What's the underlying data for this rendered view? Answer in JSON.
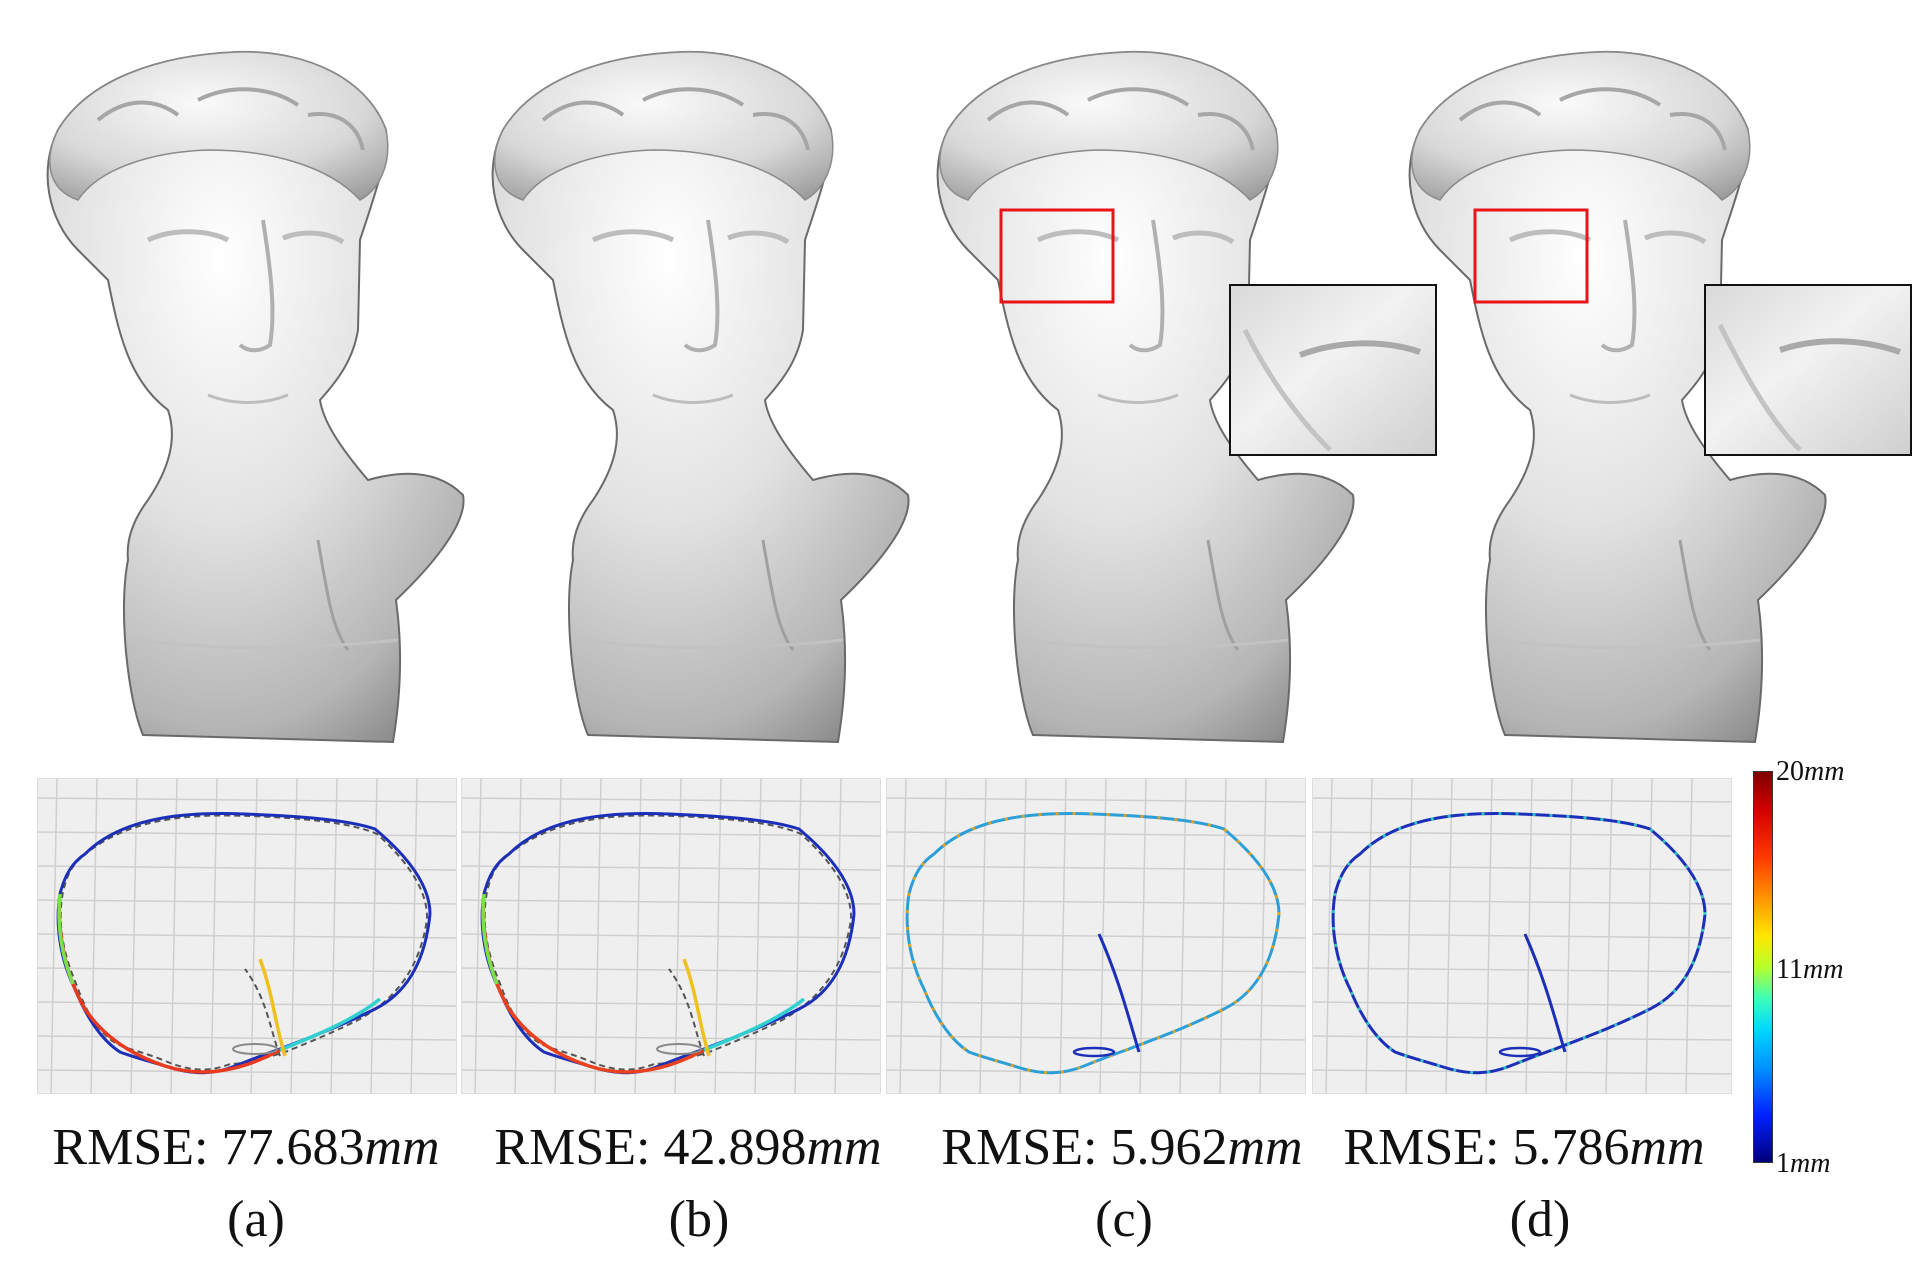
{
  "figure": {
    "subfigures": [
      {
        "letter": "(a)",
        "rmse_prefix": "RMSE: ",
        "rmse_value": "77.683",
        "rmse_unit": "mm",
        "rmse_mm": 77.683
      },
      {
        "letter": "(b)",
        "rmse_prefix": "RMSE: ",
        "rmse_value": "42.898",
        "rmse_unit": "mm",
        "rmse_mm": 42.898
      },
      {
        "letter": "(c)",
        "rmse_prefix": "RMSE: ",
        "rmse_value": "5.962",
        "rmse_unit": "mm",
        "rmse_mm": 5.962
      },
      {
        "letter": "(d)",
        "rmse_prefix": "RMSE: ",
        "rmse_value": "5.786",
        "rmse_unit": "mm",
        "rmse_mm": 5.786
      }
    ],
    "colorbar": {
      "colormap": "jet",
      "ticks": [
        {
          "value": "20",
          "unit": "mm"
        },
        {
          "value": "11",
          "unit": "mm"
        },
        {
          "value": "1",
          "unit": "mm"
        }
      ]
    },
    "colors": {
      "highlight_box": "#e8141a",
      "trajectory_low_error": "#1b2fb8",
      "trajectory_high_error": "#e83a1e",
      "ground_truth_dash": "#555555",
      "panel_background": "#efefef"
    }
  }
}
